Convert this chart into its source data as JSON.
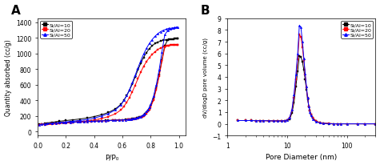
{
  "panel_A": {
    "label": "A",
    "xlabel": "P/P₀",
    "ylabel": "Quantity absorbed (cc/g)",
    "xlim": [
      0.0,
      1.05
    ],
    "ylim": [
      -50,
      1450
    ],
    "yticks": [
      0,
      200,
      400,
      600,
      800,
      1000,
      1200,
      1400
    ],
    "xticks": [
      0.0,
      0.2,
      0.4,
      0.6,
      0.8,
      1.0
    ],
    "series": [
      {
        "label": "Si/Al=10",
        "color": "black",
        "marker": "s",
        "adsorption_x": [
          0.01,
          0.03,
          0.05,
          0.07,
          0.1,
          0.13,
          0.15,
          0.18,
          0.2,
          0.23,
          0.25,
          0.28,
          0.3,
          0.33,
          0.35,
          0.38,
          0.4,
          0.43,
          0.45,
          0.48,
          0.5,
          0.53,
          0.55,
          0.58,
          0.6,
          0.62,
          0.64,
          0.65,
          0.66,
          0.67,
          0.68,
          0.69,
          0.7,
          0.71,
          0.72,
          0.73,
          0.74,
          0.75,
          0.76,
          0.77,
          0.78,
          0.79,
          0.8,
          0.82,
          0.84,
          0.86,
          0.88,
          0.9,
          0.92,
          0.94,
          0.96,
          0.98,
          0.99
        ],
        "adsorption_y": [
          92,
          96,
          100,
          104,
          108,
          112,
          115,
          118,
          120,
          122,
          124,
          126,
          128,
          130,
          132,
          134,
          136,
          138,
          140,
          142,
          144,
          146,
          148,
          150,
          152,
          155,
          158,
          160,
          162,
          164,
          167,
          170,
          174,
          178,
          183,
          190,
          200,
          212,
          226,
          245,
          268,
          295,
          330,
          420,
          560,
          730,
          920,
          1100,
          1170,
          1180,
          1185,
          1190,
          1195
        ],
        "desorption_x": [
          0.99,
          0.97,
          0.95,
          0.93,
          0.91,
          0.89,
          0.87,
          0.85,
          0.83,
          0.81,
          0.79,
          0.77,
          0.75,
          0.73,
          0.71,
          0.69,
          0.67,
          0.65,
          0.63,
          0.61,
          0.59,
          0.55,
          0.5,
          0.45,
          0.4,
          0.35,
          0.3,
          0.25,
          0.2,
          0.15,
          0.1,
          0.05
        ],
        "desorption_y": [
          1195,
          1190,
          1185,
          1180,
          1175,
          1168,
          1158,
          1145,
          1125,
          1098,
          1060,
          1010,
          950,
          875,
          790,
          700,
          610,
          530,
          460,
          400,
          350,
          290,
          245,
          215,
          193,
          175,
          162,
          152,
          142,
          132,
          120,
          108
        ]
      },
      {
        "label": "Si/Al=20",
        "color": "red",
        "marker": "s",
        "adsorption_x": [
          0.01,
          0.03,
          0.05,
          0.07,
          0.1,
          0.13,
          0.15,
          0.18,
          0.2,
          0.23,
          0.25,
          0.28,
          0.3,
          0.33,
          0.35,
          0.38,
          0.4,
          0.43,
          0.45,
          0.48,
          0.5,
          0.53,
          0.55,
          0.58,
          0.6,
          0.62,
          0.64,
          0.65,
          0.66,
          0.67,
          0.68,
          0.69,
          0.7,
          0.71,
          0.72,
          0.73,
          0.74,
          0.75,
          0.76,
          0.77,
          0.78,
          0.79,
          0.8,
          0.82,
          0.84,
          0.86,
          0.88,
          0.9,
          0.92,
          0.94,
          0.96,
          0.98,
          0.99
        ],
        "adsorption_y": [
          88,
          92,
          96,
          100,
          104,
          108,
          111,
          114,
          116,
          118,
          120,
          122,
          124,
          126,
          128,
          130,
          132,
          134,
          136,
          138,
          140,
          142,
          144,
          146,
          148,
          150,
          153,
          155,
          157,
          159,
          162,
          165,
          168,
          172,
          177,
          183,
          192,
          203,
          216,
          234,
          256,
          282,
          315,
          400,
          540,
          710,
          900,
          1080,
          1100,
          1105,
          1108,
          1110,
          1112
        ],
        "desorption_x": [
          0.99,
          0.97,
          0.95,
          0.93,
          0.91,
          0.89,
          0.87,
          0.85,
          0.83,
          0.81,
          0.79,
          0.77,
          0.75,
          0.73,
          0.71,
          0.69,
          0.67,
          0.65,
          0.63,
          0.61,
          0.59,
          0.55,
          0.5,
          0.45,
          0.4,
          0.35,
          0.3,
          0.25,
          0.2,
          0.15,
          0.1,
          0.05
        ],
        "desorption_y": [
          1112,
          1108,
          1105,
          1100,
          1095,
          1085,
          1070,
          1050,
          1020,
          988,
          945,
          895,
          835,
          762,
          678,
          592,
          510,
          438,
          374,
          322,
          278,
          228,
          192,
          168,
          150,
          136,
          126,
          118,
          110,
          102,
          94,
          86
        ]
      },
      {
        "label": "Si/Al=50",
        "color": "blue",
        "marker": "^",
        "adsorption_x": [
          0.01,
          0.03,
          0.05,
          0.07,
          0.1,
          0.13,
          0.15,
          0.18,
          0.2,
          0.23,
          0.25,
          0.28,
          0.3,
          0.33,
          0.35,
          0.38,
          0.4,
          0.43,
          0.45,
          0.48,
          0.5,
          0.53,
          0.55,
          0.58,
          0.6,
          0.62,
          0.64,
          0.65,
          0.66,
          0.67,
          0.68,
          0.69,
          0.7,
          0.71,
          0.72,
          0.73,
          0.74,
          0.75,
          0.76,
          0.77,
          0.78,
          0.79,
          0.8,
          0.82,
          0.84,
          0.86,
          0.88,
          0.9,
          0.92,
          0.94,
          0.96,
          0.98,
          0.99
        ],
        "adsorption_y": [
          90,
          94,
          98,
          102,
          106,
          110,
          113,
          116,
          118,
          120,
          122,
          124,
          126,
          128,
          130,
          132,
          134,
          136,
          138,
          140,
          142,
          144,
          146,
          148,
          150,
          152,
          155,
          157,
          160,
          163,
          166,
          170,
          174,
          179,
          185,
          193,
          204,
          218,
          234,
          256,
          280,
          310,
          348,
          450,
          600,
          790,
          1020,
          1240,
          1290,
          1310,
          1320,
          1330,
          1335
        ],
        "desorption_x": [
          0.99,
          0.97,
          0.95,
          0.93,
          0.91,
          0.89,
          0.87,
          0.85,
          0.83,
          0.81,
          0.79,
          0.77,
          0.75,
          0.73,
          0.71,
          0.69,
          0.67,
          0.65,
          0.63,
          0.61,
          0.59,
          0.55,
          0.5,
          0.45,
          0.4,
          0.35,
          0.3,
          0.25,
          0.2,
          0.15,
          0.1,
          0.05
        ],
        "desorption_y": [
          1335,
          1330,
          1325,
          1320,
          1310,
          1296,
          1278,
          1252,
          1218,
          1176,
          1126,
          1064,
          992,
          908,
          816,
          720,
          626,
          538,
          462,
          398,
          344,
          278,
          230,
          198,
          174,
          156,
          143,
          134,
          124,
          115,
          104,
          94
        ]
      }
    ]
  },
  "panel_B": {
    "label": "B",
    "xlabel": "Pore Diameter (nm)",
    "ylabel": "dV/dlogD pore volume (cc/g)",
    "xlim": [
      1,
      300
    ],
    "ylim": [
      -1,
      9
    ],
    "yticks": [
      -1,
      0,
      1,
      2,
      3,
      4,
      5,
      6,
      7,
      8,
      9
    ],
    "series": [
      {
        "label": "Si/Al=10",
        "color": "black",
        "marker": "s",
        "x": [
          1.5,
          2,
          2.5,
          3,
          3.5,
          4,
          5,
          6,
          7,
          8,
          9,
          10,
          11,
          12,
          13,
          14,
          15,
          16,
          17,
          18,
          19,
          20,
          21,
          22,
          23,
          24,
          25,
          27,
          30,
          35,
          40,
          50,
          60,
          70,
          80,
          100,
          150,
          200,
          300
        ],
        "y": [
          0.28,
          0.28,
          0.28,
          0.27,
          0.27,
          0.27,
          0.26,
          0.25,
          0.25,
          0.25,
          0.26,
          0.28,
          0.4,
          0.9,
          1.8,
          3.2,
          4.5,
          5.8,
          5.7,
          5.3,
          4.6,
          3.8,
          2.9,
          2.1,
          1.5,
          1.1,
          0.8,
          0.5,
          0.25,
          0.1,
          0.05,
          0.0,
          0.0,
          0.0,
          0.0,
          0.0,
          0.0,
          0.0,
          0.0
        ]
      },
      {
        "label": "Si/Al=20",
        "color": "red",
        "marker": "s",
        "x": [
          1.5,
          2,
          2.5,
          3,
          3.5,
          4,
          5,
          6,
          7,
          8,
          9,
          10,
          11,
          12,
          13,
          14,
          15,
          16,
          17,
          18,
          19,
          20,
          21,
          22,
          23,
          24,
          25,
          27,
          30,
          35,
          40,
          50,
          60,
          70,
          80,
          100,
          150,
          200,
          300
        ],
        "y": [
          0.28,
          0.28,
          0.28,
          0.27,
          0.27,
          0.27,
          0.26,
          0.25,
          0.25,
          0.25,
          0.26,
          0.3,
          0.5,
          1.1,
          2.2,
          3.8,
          5.5,
          7.6,
          7.4,
          6.5,
          5.4,
          4.2,
          3.1,
          2.2,
          1.5,
          1.1,
          0.8,
          0.5,
          0.25,
          0.1,
          0.05,
          0.05,
          0.0,
          0.0,
          0.0,
          0.0,
          0.0,
          0.0,
          0.0
        ]
      },
      {
        "label": "Si/Al=50",
        "color": "blue",
        "marker": "^",
        "x": [
          1.5,
          2,
          2.5,
          3,
          3.5,
          4,
          5,
          6,
          7,
          8,
          9,
          10,
          11,
          12,
          13,
          14,
          15,
          16,
          17,
          18,
          19,
          20,
          21,
          22,
          23,
          24,
          25,
          27,
          30,
          35,
          40,
          50,
          60,
          70,
          80,
          100,
          150,
          200,
          300
        ],
        "y": [
          0.28,
          0.28,
          0.28,
          0.27,
          0.27,
          0.27,
          0.26,
          0.25,
          0.25,
          0.25,
          0.27,
          0.32,
          0.55,
          1.2,
          2.5,
          4.2,
          6.0,
          8.4,
          8.2,
          7.0,
          5.6,
          4.3,
          3.2,
          2.2,
          1.5,
          1.0,
          0.7,
          0.4,
          0.2,
          0.08,
          0.04,
          0.02,
          0.0,
          0.0,
          0.0,
          0.0,
          0.0,
          0.0,
          0.0
        ]
      }
    ]
  },
  "bg_color": "#ffffff",
  "legend_A_loc": "upper left",
  "legend_B_loc": "upper right"
}
